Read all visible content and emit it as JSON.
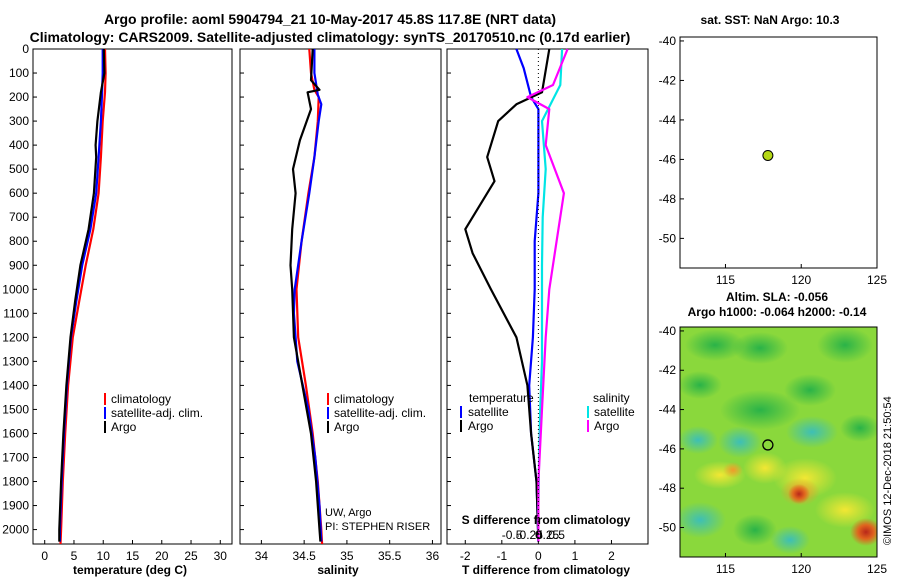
{
  "header": {
    "title_line1": "Argo profile: aoml 5904794_21 10-May-2017 45.8S 117.8E (NRT data)",
    "title_line2": "Climatology: CARS2009. Satellite-adjusted climatology: synTS_20170510.nc (0.17d earlier)"
  },
  "colors": {
    "climatology": "#ff0000",
    "satellite": "#0000ff",
    "argo": "#000000",
    "satellite_salinity": "#00e5e5",
    "argo_salinity": "#ff00ff",
    "marker": "#b5d816"
  },
  "depth_ticks": [
    "0",
    "100",
    "200",
    "300",
    "400",
    "500",
    "600",
    "700",
    "800",
    "900",
    "1000",
    "1100",
    "1200",
    "1300",
    "1400",
    "1500",
    "1600",
    "1700",
    "1800",
    "1900",
    "2000"
  ],
  "chart_data": [
    {
      "id": "temperature",
      "type": "line",
      "xlabel": "temperature (deg C)",
      "xlim": [
        -2,
        32
      ],
      "ylim": [
        0,
        2060
      ],
      "xticks": [
        "0",
        "5",
        "10",
        "15",
        "20",
        "25",
        "30"
      ],
      "legend": [
        "climatology",
        "satellite-adj. clim.",
        "Argo"
      ],
      "series": [
        {
          "name": "climatology",
          "color": "red",
          "points": [
            [
              10.3,
              0
            ],
            [
              10.4,
              100
            ],
            [
              10.3,
              180
            ],
            [
              9.9,
              300
            ],
            [
              9.6,
              450
            ],
            [
              9.2,
              600
            ],
            [
              8.3,
              750
            ],
            [
              7.0,
              900
            ],
            [
              5.9,
              1050
            ],
            [
              4.8,
              1200
            ],
            [
              4.0,
              1400
            ],
            [
              3.5,
              1600
            ],
            [
              3.1,
              1800
            ],
            [
              2.8,
              2000
            ],
            [
              2.7,
              2060
            ]
          ]
        },
        {
          "name": "satellite-adj. clim.",
          "color": "blue",
          "points": [
            [
              9.9,
              0
            ],
            [
              9.9,
              100
            ],
            [
              9.8,
              180
            ],
            [
              9.6,
              300
            ],
            [
              9.2,
              450
            ],
            [
              8.8,
              600
            ],
            [
              7.8,
              750
            ],
            [
              6.4,
              900
            ],
            [
              5.4,
              1050
            ],
            [
              4.5,
              1200
            ],
            [
              3.8,
              1400
            ],
            [
              3.3,
              1600
            ],
            [
              2.9,
              1800
            ],
            [
              2.6,
              2000
            ],
            [
              2.6,
              2050
            ]
          ]
        },
        {
          "name": "Argo",
          "color": "black",
          "points": [
            [
              10.1,
              0
            ],
            [
              10.2,
              100
            ],
            [
              9.6,
              180
            ],
            [
              9.0,
              300
            ],
            [
              8.7,
              400
            ],
            [
              8.8,
              450
            ],
            [
              8.4,
              600
            ],
            [
              7.5,
              750
            ],
            [
              6.1,
              900
            ],
            [
              5.2,
              1050
            ],
            [
              4.4,
              1200
            ],
            [
              3.7,
              1400
            ],
            [
              3.2,
              1600
            ],
            [
              2.8,
              1800
            ],
            [
              2.5,
              2000
            ],
            [
              2.5,
              2050
            ]
          ]
        }
      ]
    },
    {
      "id": "salinity",
      "type": "line",
      "xlabel": "salinity",
      "xlim": [
        33.75,
        36.1
      ],
      "ylim": [
        0,
        2060
      ],
      "xticks": [
        "34",
        "34.5",
        "35",
        "35.5",
        "36"
      ],
      "legend": [
        "climatology",
        "satellite-adj. clim.",
        "Argo"
      ],
      "annotation": [
        "UW, Argo",
        "PI: STEPHEN RISER"
      ],
      "series": [
        {
          "name": "climatology",
          "color": "red",
          "points": [
            [
              34.56,
              0
            ],
            [
              34.58,
              100
            ],
            [
              34.62,
              170
            ],
            [
              34.67,
              200
            ],
            [
              34.66,
              300
            ],
            [
              34.62,
              450
            ],
            [
              34.55,
              600
            ],
            [
              34.47,
              800
            ],
            [
              34.41,
              1000
            ],
            [
              34.43,
              1200
            ],
            [
              34.52,
              1400
            ],
            [
              34.6,
              1600
            ],
            [
              34.66,
              1800
            ],
            [
              34.7,
              2000
            ],
            [
              34.71,
              2060
            ]
          ]
        },
        {
          "name": "satellite-adj. clim.",
          "color": "blue",
          "points": [
            [
              34.62,
              0
            ],
            [
              34.62,
              100
            ],
            [
              34.66,
              190
            ],
            [
              34.7,
              230
            ],
            [
              34.67,
              300
            ],
            [
              34.62,
              450
            ],
            [
              34.56,
              600
            ],
            [
              34.47,
              800
            ],
            [
              34.39,
              1000
            ],
            [
              34.38,
              1100
            ],
            [
              34.42,
              1300
            ],
            [
              34.55,
              1500
            ],
            [
              34.63,
              1700
            ],
            [
              34.68,
              1900
            ],
            [
              34.7,
              2050
            ]
          ]
        },
        {
          "name": "Argo",
          "color": "black",
          "points": [
            [
              34.6,
              0
            ],
            [
              34.58,
              130
            ],
            [
              34.68,
              170
            ],
            [
              34.54,
              180
            ],
            [
              34.58,
              250
            ],
            [
              34.45,
              380
            ],
            [
              34.37,
              500
            ],
            [
              34.4,
              600
            ],
            [
              34.36,
              750
            ],
            [
              34.34,
              900
            ],
            [
              34.36,
              1000
            ],
            [
              34.38,
              1200
            ],
            [
              34.48,
              1400
            ],
            [
              34.58,
              1600
            ],
            [
              34.64,
              1800
            ],
            [
              34.68,
              2000
            ],
            [
              34.69,
              2050
            ]
          ]
        }
      ]
    },
    {
      "id": "differences",
      "type": "line",
      "xlabel": "T difference from climatology",
      "xlabel2": "S difference from climatology",
      "xlim": [
        -2.5,
        3.0
      ],
      "ylim": [
        0,
        2060
      ],
      "xticks": [
        "-2",
        "-1",
        "0",
        "1",
        "2"
      ],
      "xticks2": [
        "-0.5",
        "-0.25",
        "0",
        "0.25",
        "0.5"
      ],
      "legend_temperature": {
        "heading": "temperature",
        "items": [
          "satellite",
          "Argo"
        ]
      },
      "legend_salinity": {
        "heading": "salinity",
        "items": [
          "satellite",
          "Argo"
        ]
      },
      "series": [
        {
          "name": "temperature satellite",
          "color": "blue",
          "points": [
            [
              -0.6,
              0
            ],
            [
              -0.4,
              80
            ],
            [
              -0.2,
              200
            ],
            [
              0.0,
              250
            ],
            [
              0.0,
              600
            ],
            [
              -0.1,
              800
            ],
            [
              -0.1,
              1000
            ],
            [
              -0.15,
              1200
            ],
            [
              -0.25,
              1400
            ],
            [
              -0.2,
              1600
            ],
            [
              -0.05,
              1800
            ],
            [
              0.0,
              2050
            ]
          ]
        },
        {
          "name": "temperature Argo",
          "color": "black",
          "points": [
            [
              0.3,
              0
            ],
            [
              0.1,
              180
            ],
            [
              -0.6,
              230
            ],
            [
              -1.1,
              300
            ],
            [
              -1.4,
              450
            ],
            [
              -1.2,
              550
            ],
            [
              -1.6,
              650
            ],
            [
              -2.0,
              750
            ],
            [
              -1.8,
              850
            ],
            [
              -1.3,
              1000
            ],
            [
              -0.6,
              1200
            ],
            [
              -0.3,
              1400
            ],
            [
              -0.2,
              1600
            ],
            [
              -0.05,
              1800
            ],
            [
              0.0,
              2050
            ]
          ]
        },
        {
          "name": "salinity satellite",
          "color": "cyan",
          "points": [
            [
              0.65,
              0
            ],
            [
              0.6,
              150
            ],
            [
              0.1,
              300
            ],
            [
              0.2,
              500
            ],
            [
              0.12,
              700
            ],
            [
              0.1,
              900
            ],
            [
              0.1,
              1100
            ],
            [
              0.1,
              1300
            ],
            [
              0.05,
              1500
            ],
            [
              0.02,
              1700
            ],
            [
              0.0,
              1900
            ],
            [
              0.0,
              2050
            ]
          ]
        },
        {
          "name": "salinity Argo",
          "color": "magenta",
          "points": [
            [
              0.8,
              0
            ],
            [
              0.4,
              150
            ],
            [
              -0.3,
              200
            ],
            [
              0.3,
              250
            ],
            [
              0.2,
              400
            ],
            [
              0.7,
              600
            ],
            [
              0.5,
              800
            ],
            [
              0.3,
              1000
            ],
            [
              0.2,
              1200
            ],
            [
              0.1,
              1500
            ],
            [
              0.0,
              1800
            ],
            [
              0.0,
              2050
            ]
          ]
        }
      ]
    },
    {
      "id": "sst_map",
      "type": "scatter",
      "title": "sat. SST: NaN Argo: 10.3",
      "xlim": [
        112,
        125
      ],
      "ylim": [
        -51.5,
        -39.8
      ],
      "xticks": [
        "115",
        "120",
        "125"
      ],
      "yticks": [
        "-40",
        "-42",
        "-44",
        "-46",
        "-48",
        "-50"
      ],
      "point": [
        117.8,
        -45.8
      ]
    },
    {
      "id": "sla_map",
      "type": "heatmap",
      "title_line1": "Altim. SLA: -0.056",
      "title_line2": "Argo h1000: -0.064 h2000: -0.14",
      "xlim": [
        112,
        125
      ],
      "ylim": [
        -51.5,
        -39.8
      ],
      "xticks": [
        "115",
        "120",
        "125"
      ],
      "yticks": [
        "-40",
        "-42",
        "-44",
        "-46",
        "-48",
        "-50"
      ],
      "point": [
        117.8,
        -45.8
      ],
      "watermark": "©IMOS 12-Dec-2018 21:50:54"
    }
  ]
}
